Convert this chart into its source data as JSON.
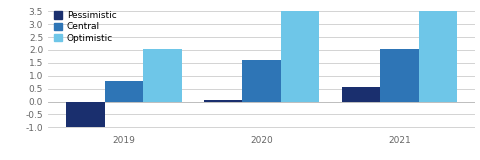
{
  "years": [
    "2019",
    "2020",
    "2021"
  ],
  "pessimistic": [
    -1.0,
    0.05,
    0.55
  ],
  "central": [
    0.8,
    1.6,
    2.05
  ],
  "optimistic": [
    2.05,
    3.5,
    3.5
  ],
  "colors": {
    "pessimistic": "#1a2f6e",
    "central": "#2e75b6",
    "optimistic": "#6ec6e8"
  },
  "ylim": [
    -1.15,
    3.75
  ],
  "yticks": [
    -1.0,
    -0.5,
    0.0,
    0.5,
    1.0,
    1.5,
    2.0,
    2.5,
    3.0,
    3.5
  ],
  "legend_labels": [
    "Pessimistic",
    "Central",
    "Optimistic"
  ],
  "bar_width": 0.28,
  "background_color": "#ffffff",
  "grid_color": "#cccccc",
  "tick_color": "#666666",
  "tick_fontsize": 6.5,
  "legend_fontsize": 6.5
}
